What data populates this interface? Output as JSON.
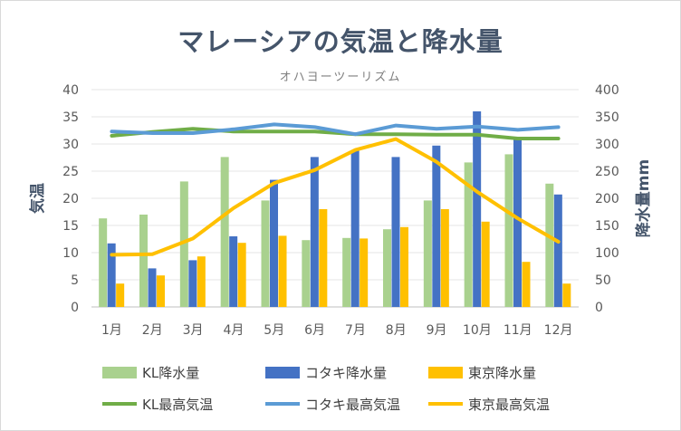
{
  "title": "マレーシアの気温と降水量",
  "subtitle": "オハヨーツーリズム",
  "chart_data": {
    "type": "bar",
    "categories": [
      "1月",
      "2月",
      "3月",
      "4月",
      "5月",
      "6月",
      "7月",
      "8月",
      "9月",
      "10月",
      "11月",
      "12月"
    ],
    "ylabel": "気温",
    "y2label": "降水量mm",
    "ylim": [
      0,
      40
    ],
    "y2lim": [
      0,
      400
    ],
    "yticks": [
      0,
      5,
      10,
      15,
      20,
      25,
      30,
      35,
      40
    ],
    "y2ticks": [
      0,
      50,
      100,
      150,
      200,
      250,
      300,
      350,
      400
    ],
    "bar_series": [
      {
        "name": "KL降水量",
        "color": "#a9d18e",
        "values": [
          163,
          170,
          231,
          276,
          196,
          123,
          127,
          143,
          196,
          266,
          281,
          227
        ]
      },
      {
        "name": "コタキ降水量",
        "color": "#4472c4",
        "values": [
          117,
          71,
          86,
          130,
          234,
          276,
          288,
          276,
          297,
          360,
          308,
          207
        ]
      },
      {
        "name": "東京降水量",
        "color": "#ffc000",
        "values": [
          43,
          58,
          93,
          118,
          131,
          180,
          126,
          147,
          180,
          157,
          83,
          43
        ]
      }
    ],
    "line_series": [
      {
        "name": "KL最高気温",
        "color": "#70ad47",
        "values": [
          31.5,
          32.2,
          32.8,
          32.3,
          32.3,
          32.3,
          31.8,
          31.8,
          31.7,
          31.7,
          31.0,
          31.0
        ]
      },
      {
        "name": "コタキ最高気温",
        "color": "#5b9bd5",
        "values": [
          32.3,
          32.0,
          32.0,
          32.7,
          33.6,
          33.1,
          31.8,
          33.4,
          32.8,
          33.2,
          32.6,
          33.1
        ]
      },
      {
        "name": "東京最高気温",
        "color": "#ffc000",
        "values": [
          9.6,
          9.7,
          12.6,
          18.2,
          22.8,
          25.2,
          28.9,
          30.9,
          26.7,
          21.2,
          16.3,
          12.0
        ]
      }
    ],
    "legend_position": "bottom",
    "grid": true
  }
}
